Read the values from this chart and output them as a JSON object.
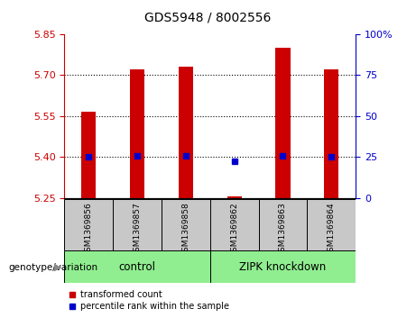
{
  "title": "GDS5948 / 8002556",
  "samples": [
    "GSM1369856",
    "GSM1369857",
    "GSM1369858",
    "GSM1369862",
    "GSM1369863",
    "GSM1369864"
  ],
  "red_values": [
    5.565,
    5.72,
    5.73,
    5.255,
    5.8,
    5.72
  ],
  "blue_values": [
    5.401,
    5.405,
    5.405,
    5.385,
    5.405,
    5.401
  ],
  "ymin": 5.25,
  "ymax": 5.85,
  "y_ticks_left": [
    5.25,
    5.4,
    5.55,
    5.7,
    5.85
  ],
  "y_ticks_right": [
    0,
    25,
    50,
    75,
    100
  ],
  "dotted_lines": [
    5.4,
    5.55,
    5.7
  ],
  "control_label": "control",
  "knockdown_label": "ZIPK knockdown",
  "genotype_label": "genotype/variation",
  "legend_red": "transformed count",
  "legend_blue": "percentile rank within the sample",
  "group_color": "#90EE90",
  "sample_box_color": "#C8C8C8",
  "bar_color": "#CC0000",
  "dot_color": "#0000CC",
  "bg_color": "#FFFFFF",
  "left_tick_color": "#CC0000",
  "right_tick_color": "#0000CC",
  "bar_width": 0.3
}
